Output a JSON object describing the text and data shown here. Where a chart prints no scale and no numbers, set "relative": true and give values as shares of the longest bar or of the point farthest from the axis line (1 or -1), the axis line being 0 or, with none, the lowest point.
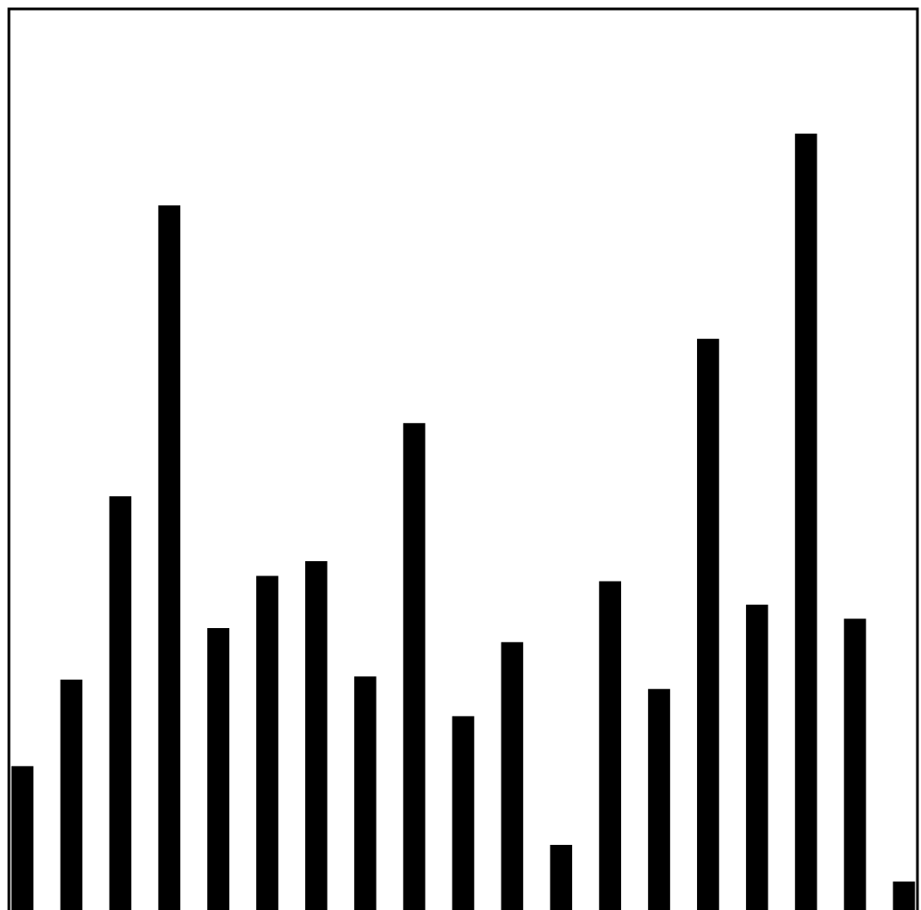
{
  "chart_data": {
    "type": "bar",
    "relative": true,
    "color": "#000000",
    "categories": [
      null,
      null,
      null,
      null,
      null,
      null,
      null,
      null,
      null,
      null,
      null,
      null,
      null,
      null,
      null,
      null,
      null,
      null,
      null
    ],
    "values": [
      0.189,
      0.3,
      0.535,
      0.908,
      0.366,
      0.433,
      0.452,
      0.304,
      0.629,
      0.253,
      0.348,
      0.088,
      0.426,
      0.288,
      0.737,
      0.396,
      1,
      0.378,
      0.041
    ]
  }
}
